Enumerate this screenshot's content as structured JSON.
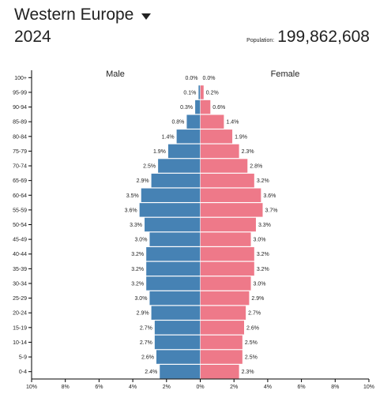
{
  "header": {
    "region": "Western Europe",
    "year": "2024",
    "population_label": "Population:",
    "population_value": "199,862,608"
  },
  "colors": {
    "male": "#4682b4",
    "female": "#ee7989",
    "axis": "#000000"
  },
  "chart_data": {
    "type": "bar",
    "orientation": "horizontal",
    "subtype": "population-pyramid",
    "categories": [
      "100+",
      "95-99",
      "90-94",
      "85-89",
      "80-84",
      "75-79",
      "70-74",
      "65-69",
      "60-64",
      "55-59",
      "50-54",
      "45-49",
      "40-44",
      "35-39",
      "30-34",
      "25-29",
      "20-24",
      "15-19",
      "10-14",
      "5-9",
      "0-4"
    ],
    "series": [
      {
        "name": "Male",
        "values": [
          0.0,
          0.1,
          0.3,
          0.8,
          1.4,
          1.9,
          2.5,
          2.9,
          3.5,
          3.6,
          3.3,
          3.0,
          3.2,
          3.2,
          3.2,
          3.0,
          2.9,
          2.7,
          2.7,
          2.6,
          2.4
        ],
        "labels": [
          "0.0%",
          "0.1%",
          "0.3%",
          "0.8%",
          "1.4%",
          "1.9%",
          "2.5%",
          "2.9%",
          "3.5%",
          "3.6%",
          "3.3%",
          "3.0%",
          "3.2%",
          "3.2%",
          "3.2%",
          "3.0%",
          "2.9%",
          "2.7%",
          "2.7%",
          "2.6%",
          "2.4%"
        ]
      },
      {
        "name": "Female",
        "values": [
          0.0,
          0.2,
          0.6,
          1.4,
          1.9,
          2.3,
          2.8,
          3.2,
          3.6,
          3.7,
          3.3,
          3.0,
          3.2,
          3.2,
          3.0,
          2.9,
          2.7,
          2.6,
          2.5,
          2.5,
          2.3
        ],
        "labels": [
          "0.0%",
          "0.2%",
          "0.6%",
          "1.4%",
          "1.9%",
          "2.3%",
          "2.8%",
          "3.2%",
          "3.6%",
          "3.7%",
          "3.3%",
          "3.0%",
          "3.2%",
          "3.2%",
          "3.0%",
          "2.9%",
          "2.7%",
          "2.6%",
          "2.5%",
          "2.5%",
          "2.3%"
        ]
      }
    ],
    "xlim": [
      -10,
      10
    ],
    "xticks": [
      "10%",
      "8%",
      "6%",
      "4%",
      "2%",
      "0%",
      "2%",
      "4%",
      "6%",
      "8%",
      "10%"
    ],
    "grid": false
  }
}
